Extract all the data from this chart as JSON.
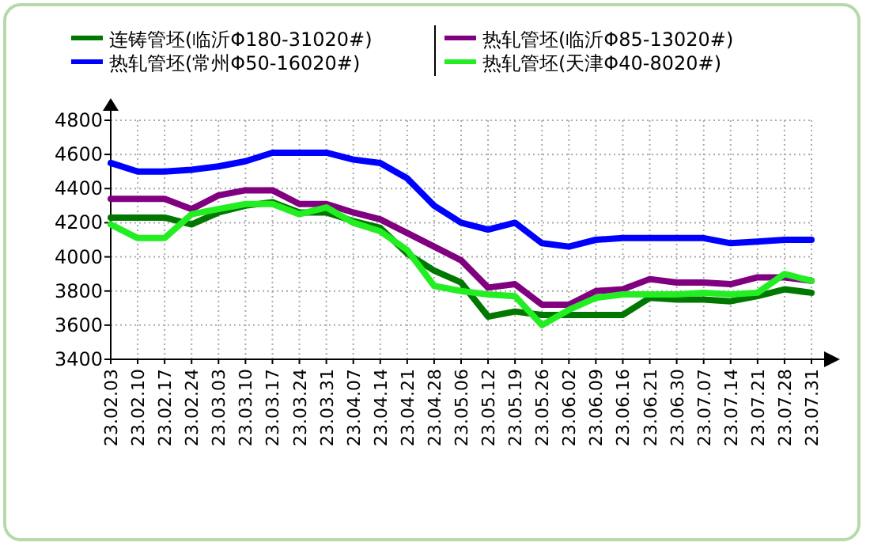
{
  "chart_data": {
    "type": "line",
    "categories": [
      "23.02.03",
      "23.02.10",
      "23.02.17",
      "23.02.24",
      "23.03.03",
      "23.03.10",
      "23.03.17",
      "23.03.24",
      "23.03.31",
      "23.04.07",
      "23.04.14",
      "23.04.21",
      "23.04.28",
      "23.05.06",
      "23.05.12",
      "23.05.19",
      "23.05.26",
      "23.06.02",
      "23.06.09",
      "23.06.16",
      "23.06.21",
      "23.06.30",
      "23.07.07",
      "23.07.14",
      "23.07.21",
      "23.07.28",
      "23.07.31"
    ],
    "series": [
      {
        "name": "连铸管坯(临沂Φ180-31020#)",
        "color": "#007800",
        "values": [
          4230,
          4230,
          4230,
          4190,
          4260,
          4300,
          4320,
          4260,
          4260,
          4210,
          4170,
          4020,
          3920,
          3850,
          3650,
          3680,
          3660,
          3660,
          3660,
          3660,
          3760,
          3750,
          3750,
          3740,
          3770,
          3810,
          3790
        ]
      },
      {
        "name": "热轧管坯(临沂Φ85-13020#)",
        "color": "#800080",
        "values": [
          4340,
          4340,
          4340,
          4280,
          4360,
          4390,
          4390,
          4310,
          4310,
          4260,
          4220,
          4140,
          4060,
          3980,
          3820,
          3840,
          3720,
          3720,
          3800,
          3810,
          3870,
          3850,
          3850,
          3840,
          3880,
          3880,
          3860
        ]
      },
      {
        "name": "热轧管坯(常州Φ50-16020#)",
        "color": "#0000ff",
        "values": [
          4550,
          4500,
          4500,
          4510,
          4530,
          4560,
          4610,
          4610,
          4610,
          4570,
          4550,
          4460,
          4300,
          4200,
          4160,
          4200,
          4080,
          4060,
          4100,
          4110,
          4110,
          4110,
          4110,
          4080,
          4090,
          4100,
          4100
        ]
      },
      {
        "name": "热轧管坯(天津Φ40-8020#)",
        "color": "#22ee22",
        "values": [
          4190,
          4110,
          4110,
          4250,
          4280,
          4310,
          4310,
          4250,
          4290,
          4200,
          4150,
          4040,
          3830,
          3800,
          3780,
          3770,
          3600,
          3690,
          3760,
          3780,
          3780,
          3780,
          3790,
          3780,
          3790,
          3900,
          3860
        ]
      }
    ],
    "ylim": [
      3400,
      4800
    ],
    "yticks": [
      3400,
      3600,
      3800,
      4000,
      4200,
      4400,
      4600,
      4800
    ],
    "grid": true,
    "legend": "top",
    "line_style": "solid",
    "marker": "none"
  }
}
